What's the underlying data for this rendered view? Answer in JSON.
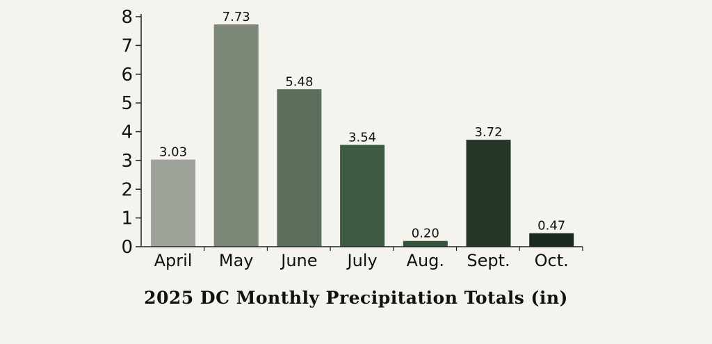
{
  "chart_data": {
    "type": "bar",
    "title": "2025 DC Monthly Precipitation Totals (in)",
    "xlabel": "",
    "ylabel": "",
    "categories": [
      "April",
      "May",
      "June",
      "July",
      "Aug.",
      "Sept.",
      "Oct."
    ],
    "values": [
      3.03,
      7.73,
      5.48,
      3.54,
      0.2,
      3.72,
      0.47
    ],
    "value_labels": [
      "3.03",
      "7.73",
      "5.48",
      "3.54",
      "0.20",
      "3.72",
      "0.47"
    ],
    "ylim": [
      0,
      8
    ],
    "yticks": [
      0,
      1,
      2,
      3,
      4,
      5,
      6,
      7,
      8
    ],
    "grid": false,
    "legend": "none",
    "colors": [
      "#9ea39a",
      "#7b8878",
      "#5c6f5d",
      "#3d5a42",
      "#34533c",
      "#253528",
      "#1b2a1e"
    ]
  }
}
